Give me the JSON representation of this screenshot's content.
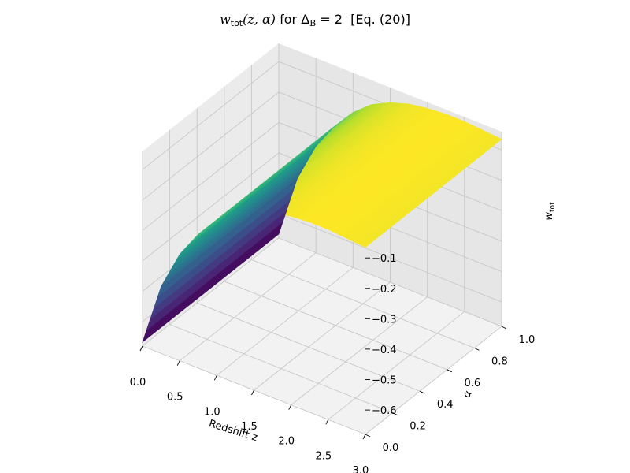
{
  "chart_data": {
    "type": "surface",
    "title": {
      "prefix_symbol": "w",
      "prefix_sub": "tot",
      "args": "(z, α)",
      "middle": " for ",
      "delta": "Δ",
      "delta_sub": "B",
      "equals": " = 2",
      "suffix": "  [Eq. (20)]"
    },
    "xlabel": "Redshift z",
    "ylabel": "α",
    "zlabel": "w",
    "zlabel_sub": "tot",
    "xlim": [
      0,
      3
    ],
    "ylim": [
      0,
      1
    ],
    "zlim": [
      -0.68,
      -0.04
    ],
    "x_ticks": [
      "0.0",
      "0.5",
      "1.0",
      "1.5",
      "2.0",
      "2.5",
      "3.0"
    ],
    "y_ticks": [
      "0.0",
      "0.2",
      "0.4",
      "0.6",
      "0.8",
      "1.0"
    ],
    "z_ticks": [
      "-0.6",
      "-0.5",
      "-0.4",
      "-0.3",
      "-0.2",
      "-0.1"
    ],
    "colormap": "viridis",
    "grid": true,
    "surface_profile": {
      "z": [
        0.0,
        0.25,
        0.5,
        0.75,
        1.0,
        1.25,
        1.5,
        1.75,
        2.0,
        2.25,
        2.5,
        2.75,
        3.0
      ],
      "w_tot": [
        -0.667,
        -0.46,
        -0.33,
        -0.24,
        -0.17,
        -0.12,
        -0.09,
        -0.07,
        -0.06,
        -0.055,
        -0.055,
        -0.06,
        -0.065
      ]
    }
  }
}
